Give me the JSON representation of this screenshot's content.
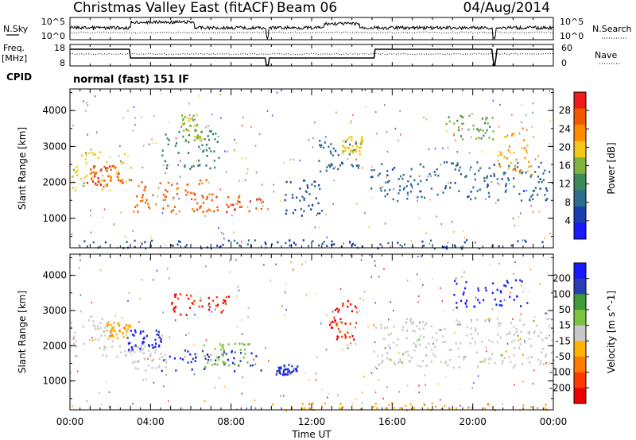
{
  "header": {
    "station": "Christmas Valley East (fitACF)",
    "beam": "Beam 06",
    "date": "04/Aug/2014"
  },
  "strip_labels": {
    "nsky": "N.Sky",
    "freq": "Freq.",
    "freq_unit": "[MHz]",
    "cpid": "CPID",
    "nsearch": "N.Search",
    "nave": "Nave",
    "cpid_text": "normal (fast) 151 IF"
  },
  "strip_ticks": {
    "noise_left": [
      "10^5",
      "10^0"
    ],
    "noise_right": [
      "10^5",
      "10^0"
    ],
    "freq_left": [
      "18",
      "8"
    ],
    "nave_right": [
      "60",
      "0"
    ]
  },
  "colors": {
    "power_scale": [
      "#1a1aff",
      "#1c3fb0",
      "#2e6e8e",
      "#3c8a5a",
      "#7fb23e",
      "#f2c81c",
      "#ff8c00",
      "#f25a00",
      "#ee1c1c"
    ],
    "velocity_scale": [
      "#1a1aff",
      "#2a3fb5",
      "#3f9a3a",
      "#7bc442",
      "#c8c8c8",
      "#ffb100",
      "#ff7a00",
      "#ff3a00",
      "#ee0000"
    ],
    "ground_scatter": "#c8c8c8"
  },
  "chart_data": [
    {
      "type": "heatmap",
      "panel": "power",
      "xlabel": "",
      "ylabel": "Slant Range [km]",
      "x_tick_labels": [
        "00:00",
        "04:00",
        "08:00",
        "12:00",
        "16:00",
        "20:00",
        "00:00"
      ],
      "y_ticks": [
        1000,
        2000,
        3000,
        4000
      ],
      "ylim": [
        180,
        4600
      ],
      "xlim_hours": [
        0,
        24
      ],
      "colorbar": {
        "label": "Power [dB]",
        "ticks": [
          "4",
          "8",
          "12",
          "16",
          "20",
          "24",
          "28"
        ],
        "range": [
          0,
          30
        ]
      },
      "regions": [
        {
          "t0": 0.0,
          "t1": 3.0,
          "r0": 1800,
          "r1": 2900,
          "value": 18
        },
        {
          "t0": 0.8,
          "t1": 2.6,
          "r0": 1900,
          "r1": 2500,
          "value": 26
        },
        {
          "t0": 3.0,
          "t1": 7.0,
          "r0": 1200,
          "r1": 2100,
          "value": 24
        },
        {
          "t0": 6.0,
          "t1": 9.6,
          "r0": 1200,
          "r1": 1700,
          "value": 26
        },
        {
          "t0": 4.5,
          "t1": 7.5,
          "r0": 2400,
          "r1": 3500,
          "value": 10
        },
        {
          "t0": 5.5,
          "t1": 6.5,
          "r0": 3200,
          "r1": 3900,
          "value": 16
        },
        {
          "t0": 10.6,
          "t1": 12.5,
          "r0": 1100,
          "r1": 2100,
          "value": 6
        },
        {
          "t0": 12.3,
          "t1": 14.3,
          "r0": 2300,
          "r1": 3200,
          "value": 8
        },
        {
          "t0": 13.5,
          "t1": 14.5,
          "r0": 2800,
          "r1": 3300,
          "value": 18
        },
        {
          "t0": 14.8,
          "t1": 24.0,
          "r0": 1500,
          "r1": 2600,
          "value": 8
        },
        {
          "t0": 18.5,
          "t1": 21.0,
          "r0": 3200,
          "r1": 3900,
          "value": 14
        },
        {
          "t0": 21.2,
          "t1": 23.0,
          "r0": 2200,
          "r1": 3600,
          "value": 20
        },
        {
          "t0": 0.0,
          "t1": 24.0,
          "r0": 180,
          "r1": 420,
          "value": 6
        }
      ]
    },
    {
      "type": "heatmap",
      "panel": "velocity",
      "xlabel": "Time UT",
      "ylabel": "Slant Range [km]",
      "x_tick_labels": [
        "00:00",
        "04:00",
        "08:00",
        "12:00",
        "16:00",
        "20:00",
        "00:00"
      ],
      "y_ticks": [
        1000,
        2000,
        3000,
        4000
      ],
      "ylim": [
        180,
        4600
      ],
      "xlim_hours": [
        0,
        24
      ],
      "colorbar": {
        "label": "Velocity [m s^-1]",
        "ticks": [
          "200",
          "100",
          "50",
          "15",
          "-15",
          "-50",
          "-100",
          "-200"
        ],
        "range": [
          -250,
          250
        ]
      },
      "regions": [
        {
          "t0": 0.0,
          "t1": 3.0,
          "r0": 1700,
          "r1": 2800,
          "value": 0
        },
        {
          "t0": 1.8,
          "t1": 3.0,
          "r0": 2200,
          "r1": 2700,
          "value": -60
        },
        {
          "t0": 3.0,
          "t1": 5.0,
          "r0": 1300,
          "r1": 2100,
          "value": 0
        },
        {
          "t0": 2.8,
          "t1": 4.5,
          "r0": 1900,
          "r1": 2500,
          "value": 200
        },
        {
          "t0": 4.5,
          "t1": 9.5,
          "r0": 1300,
          "r1": 1900,
          "value": 180
        },
        {
          "t0": 6.5,
          "t1": 9.0,
          "r0": 1400,
          "r1": 2100,
          "value": 60
        },
        {
          "t0": 5.0,
          "t1": 8.0,
          "r0": 2900,
          "r1": 3500,
          "value": -200
        },
        {
          "t0": 10.2,
          "t1": 11.3,
          "r0": 1200,
          "r1": 1500,
          "value": 180
        },
        {
          "t0": 12.8,
          "t1": 14.2,
          "r0": 2200,
          "r1": 3300,
          "value": -200
        },
        {
          "t0": 15.0,
          "t1": 24.0,
          "r0": 1400,
          "r1": 2800,
          "value": 0
        },
        {
          "t0": 19.0,
          "t1": 22.7,
          "r0": 3100,
          "r1": 3900,
          "value": 220
        },
        {
          "t0": 10.0,
          "t1": 24.0,
          "r0": 180,
          "r1": 400,
          "value": -70
        }
      ]
    }
  ]
}
